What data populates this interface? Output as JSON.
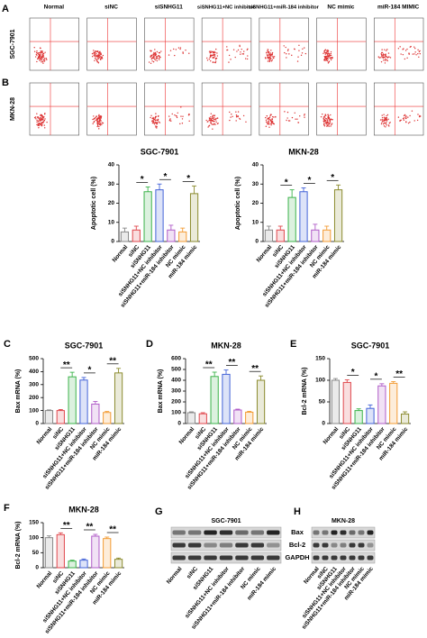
{
  "flow": {
    "label_a": "A",
    "label_b": "B",
    "columns": [
      "Normal",
      "siNC",
      "siSNHG11",
      "siSNHG11+NC inhibitor",
      "siSNHG11+miR-184 inhibitor",
      "NC mimic",
      "miR-184 MIMIC"
    ],
    "rows": [
      "SGC-7901",
      "MKN-28"
    ]
  },
  "chart_data": [
    {
      "type": "bar",
      "title": "SGC-7901",
      "y_label": "Apoptotic cell (%)",
      "categories": [
        "Normal",
        "siNC",
        "siSNHG11",
        "siSNHG11+NC inhibitor",
        "siSNHG11+miR-184 inhibitor",
        "NC mimic",
        "miR-184 mimic"
      ],
      "values": [
        5,
        6,
        26,
        27,
        6,
        5,
        25
      ],
      "errors": [
        2,
        2,
        2.5,
        3,
        2.5,
        2,
        4
      ],
      "colors": [
        "#888888",
        "#e0474c",
        "#3cb44b",
        "#4363d8",
        "#b05cc8",
        "#f39c34",
        "#8b8b2e"
      ],
      "ylim": [
        0,
        40
      ],
      "yticks": [
        0,
        10,
        20,
        30,
        40
      ],
      "annotations": [
        "*",
        "*",
        "*"
      ]
    },
    {
      "type": "bar",
      "title": "MKN-28",
      "y_label": "Apoptotic cell (%)",
      "categories": [
        "Normal",
        "siNC",
        "siSNHG11",
        "siSNHG11+NC inhibitor",
        "siSNHG11+miR-184 inhibitor",
        "NC mimic",
        "miR-184 mimic"
      ],
      "values": [
        6,
        6,
        23,
        26,
        6,
        6,
        27
      ],
      "errors": [
        2,
        2,
        4,
        2,
        3,
        2,
        2.5
      ],
      "colors": [
        "#888888",
        "#e0474c",
        "#3cb44b",
        "#4363d8",
        "#b05cc8",
        "#f39c34",
        "#8b8b2e"
      ],
      "ylim": [
        0,
        40
      ],
      "yticks": [
        0,
        10,
        20,
        30,
        40
      ],
      "annotations": [
        "*",
        "*",
        "*"
      ]
    },
    {
      "type": "bar",
      "label": "C",
      "title": "SGC-7901",
      "y_label": "Bax mRNA (%)",
      "categories": [
        "Normal",
        "siNC",
        "siSNHG11",
        "siSNHG11+NC inhibitor",
        "siSNHG11+miR-184 inhibitor",
        "NC mimic",
        "miR-184 mimic"
      ],
      "values": [
        100,
        100,
        360,
        335,
        150,
        85,
        390
      ],
      "errors": [
        5,
        8,
        35,
        20,
        20,
        8,
        35
      ],
      "colors": [
        "#888888",
        "#e0474c",
        "#3cb44b",
        "#4363d8",
        "#b05cc8",
        "#f39c34",
        "#8b8b2e"
      ],
      "ylim": [
        0,
        500
      ],
      "yticks": [
        0,
        100,
        200,
        300,
        400,
        500
      ],
      "annotations": [
        "**",
        "*",
        "**"
      ]
    },
    {
      "type": "bar",
      "label": "D",
      "title": "MKN-28",
      "y_label": "Bax mRNA (%)",
      "categories": [
        "Normal",
        "siNC",
        "siSNHG11",
        "siSNHG11+NC inhibitor",
        "siSNHG11+miR-184 inhibitor",
        "NC mimic",
        "miR-184 mimic"
      ],
      "values": [
        100,
        90,
        435,
        455,
        125,
        105,
        400
      ],
      "errors": [
        8,
        10,
        40,
        40,
        8,
        8,
        40
      ],
      "colors": [
        "#888888",
        "#e0474c",
        "#3cb44b",
        "#4363d8",
        "#b05cc8",
        "#f39c34",
        "#8b8b2e"
      ],
      "ylim": [
        0,
        600
      ],
      "yticks": [
        0,
        100,
        200,
        300,
        400,
        500,
        600
      ],
      "annotations": [
        "**",
        "**",
        "**"
      ]
    },
    {
      "type": "bar",
      "label": "E",
      "title": "SGC-7901",
      "y_label": "Bcl-2 mRNA (%)",
      "categories": [
        "Normal",
        "siNC",
        "siSNHG11",
        "siSNHG11+NC inhibitor",
        "siSNHG11+miR-184 inhibitor",
        "NC mimic",
        "miR-184 mimic"
      ],
      "values": [
        100,
        95,
        30,
        35,
        87,
        93,
        22
      ],
      "errors": [
        4,
        6,
        4,
        8,
        5,
        4,
        5
      ],
      "colors": [
        "#888888",
        "#e0474c",
        "#3cb44b",
        "#4363d8",
        "#b05cc8",
        "#f39c34",
        "#8b8b2e"
      ],
      "ylim": [
        0,
        150
      ],
      "yticks": [
        0,
        50,
        100,
        150
      ],
      "annotations": [
        "*",
        "*",
        "**"
      ]
    },
    {
      "type": "bar",
      "label": "F",
      "title": "MKN-28",
      "y_label": "Bcl-2 mRNA (%)",
      "categories": [
        "Normal",
        "siNC",
        "siSNHG11",
        "siSNHG11+NC inhibitor",
        "siSNHG11+miR-184 inhibitor",
        "NC mimic",
        "miR-184 mimic"
      ],
      "values": [
        100,
        110,
        22,
        25,
        105,
        97,
        28
      ],
      "errors": [
        6,
        6,
        3,
        4,
        6,
        5,
        4
      ],
      "colors": [
        "#888888",
        "#e0474c",
        "#3cb44b",
        "#4363d8",
        "#b05cc8",
        "#f39c34",
        "#8b8b2e"
      ],
      "ylim": [
        0,
        150
      ],
      "yticks": [
        0,
        50,
        100,
        150
      ],
      "annotations": [
        "**",
        "**",
        "**"
      ]
    }
  ],
  "blot_rows": [
    "Bax",
    "Bcl-2",
    "GAPDH"
  ],
  "blots": [
    {
      "label": "G",
      "title": "SGC-7901",
      "lanes": [
        "Normal",
        "siNC",
        "siSNHG11",
        "siSNHG11+NC inhibitor",
        "siSNHG11+miR-184 inhibitor",
        "NC mimic",
        "miR-184 mimic"
      ]
    },
    {
      "label": "H",
      "title": "MKN-28",
      "lanes": [
        "Normal",
        "siNC",
        "siSNHG11",
        "siSNHG11+NC inhibitor",
        "siSNHG11+miR-184 inhibitor",
        "NC mimic",
        "miR-184 mimic"
      ]
    }
  ]
}
